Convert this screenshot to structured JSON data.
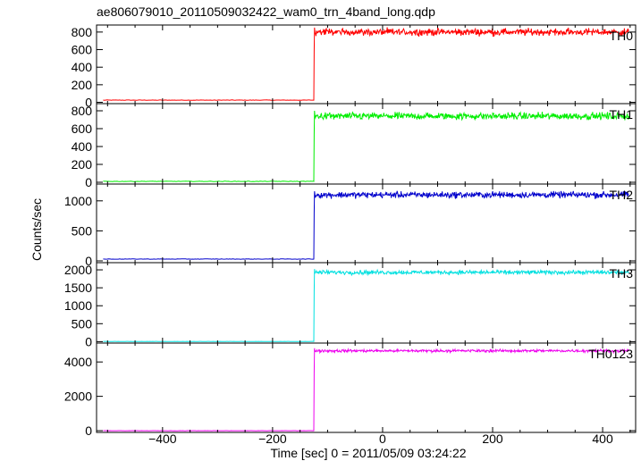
{
  "chart_data": {
    "type": "line",
    "title": "ae806079010_20110509032422_wam0_trn_4band_long.qdp",
    "xlabel": "Time [sec] 0 = 2011/05/09 03:24:22",
    "ylabel": "Counts/sec",
    "xlim": [
      -520,
      460
    ],
    "xticks": [
      -400,
      -200,
      0,
      200,
      400
    ],
    "xtick_labels": [
      "−400",
      "−200",
      "0",
      "200",
      "400"
    ],
    "onset_x": -125,
    "panels": [
      {
        "name": "TH0",
        "color": "#ff0000",
        "ylim": [
          -15,
          880
        ],
        "yticks": [
          0,
          200,
          400,
          600,
          800
        ],
        "ytick_labels": [
          "0",
          "200",
          "400",
          "600",
          "800"
        ],
        "pre_level": 25,
        "post_level": 800,
        "peak": 850,
        "noise": 30
      },
      {
        "name": "TH1",
        "color": "#00ee00",
        "ylim": [
          -20,
          880
        ],
        "yticks": [
          0,
          200,
          400,
          600,
          800
        ],
        "ytick_labels": [
          "0",
          "200",
          "400",
          "600",
          "800"
        ],
        "pre_level": 10,
        "post_level": 740,
        "peak": 800,
        "noise": 30
      },
      {
        "name": "TH2",
        "color": "#0000cc",
        "ylim": [
          -30,
          1280
        ],
        "yticks": [
          0,
          500,
          1000
        ],
        "ytick_labels": [
          "0",
          "500",
          "1000"
        ],
        "pre_level": 30,
        "post_level": 1100,
        "peak": 1160,
        "noise": 40
      },
      {
        "name": "TH3",
        "color": "#00e0e0",
        "ylim": [
          -40,
          2200
        ],
        "yticks": [
          0,
          500,
          1000,
          1500,
          2000
        ],
        "ytick_labels": [
          "0",
          "500",
          "1000",
          "1500",
          "2000"
        ],
        "pre_level": 5,
        "post_level": 1930,
        "peak": 2020,
        "noise": 45
      },
      {
        "name": "TH0123",
        "color": "#ee00ee",
        "ylim": [
          -100,
          5100
        ],
        "yticks": [
          0,
          2000,
          4000
        ],
        "ytick_labels": [
          "0",
          "2000",
          "4000"
        ],
        "pre_level": 0,
        "post_level": 4650,
        "peak": 4800,
        "noise": 60
      }
    ]
  }
}
